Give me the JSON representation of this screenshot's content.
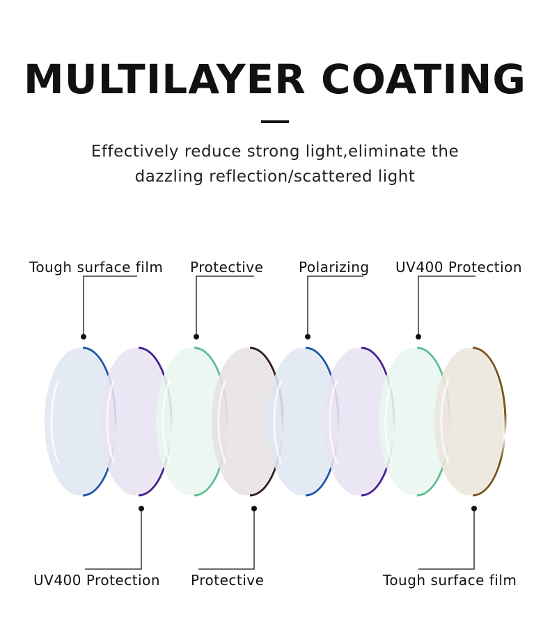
{
  "header": {
    "title": "MULTILAYER COATING",
    "subtitle_line1": "Effectively reduce strong light,eliminate the",
    "subtitle_line2": "dazzling reflection/scattered light"
  },
  "top_labels": [
    "Tough surface film",
    "Protective",
    "Polarizing",
    "UV400 Protection"
  ],
  "bottom_labels": [
    "UV400 Protection",
    "Protective",
    "Tough surface film"
  ],
  "lenses": [
    {
      "fill": "#dfe7f3",
      "rim": "#1f5aa8"
    },
    {
      "fill": "#e8e2f1",
      "rim": "#4b2590"
    },
    {
      "fill": "#e9f6ef",
      "rim": "#5fbf95"
    },
    {
      "fill": "#e7e1e2",
      "rim": "#3a2020"
    },
    {
      "fill": "#dfe7f3",
      "rim": "#1f5aa8"
    },
    {
      "fill": "#e8e2f1",
      "rim": "#4b2590"
    },
    {
      "fill": "#e9f6ef",
      "rim": "#5fbf95"
    },
    {
      "fill": "#ece6dc",
      "rim": "#7a5a1e"
    }
  ]
}
